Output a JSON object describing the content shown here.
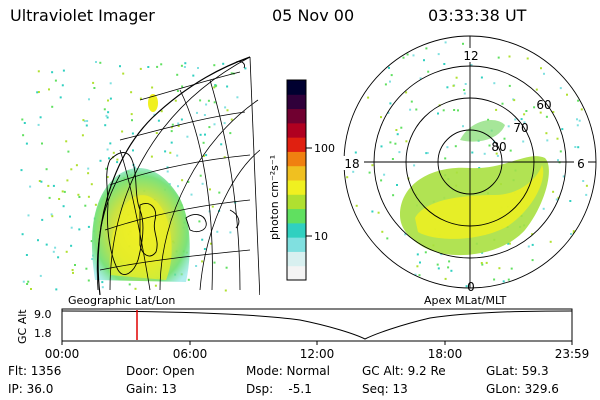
{
  "header": {
    "instrument": "Ultraviolet Imager",
    "date": "05 Nov 00",
    "time": "03:33:38 UT"
  },
  "panels": {
    "left_label": "Geographic Lat/Lon",
    "right_label": "Apex MLat/MLT"
  },
  "colorbar": {
    "unit": "photon cm⁻²s⁻¹",
    "tick_100": "100",
    "tick_10": "10",
    "colors": [
      "#f4f4f4",
      "#d8f0f0",
      "#80e0e0",
      "#30d0c0",
      "#60e060",
      "#b0e030",
      "#f0f020",
      "#f0c020",
      "#f08010",
      "#e02010",
      "#b00020",
      "#700030",
      "#30003a",
      "#000030"
    ]
  },
  "polar": {
    "mlt_labels": [
      "12",
      "18",
      "6",
      "0"
    ],
    "lat_labels": [
      "60",
      "70",
      "80"
    ]
  },
  "timeline": {
    "y_label": "GC Alt",
    "y_ticks": [
      "9.0",
      "1.8"
    ],
    "x_ticks": [
      "00:00",
      "06:00",
      "12:00",
      "18:00",
      "23:59"
    ],
    "marker_time": "03:33"
  },
  "status": {
    "row1": {
      "flt": "Flt: 1356",
      "door": "Door: Open",
      "mode": "Mode: Normal",
      "gcalt": "GC Alt: 9.2 Re",
      "glat": "GLat:  59.3"
    },
    "row2": {
      "ip": "IP: 36.0",
      "gain": "Gain: 13",
      "dsp": "Dsp:    -5.1",
      "seq": "Seq: 13",
      "glon": "GLon: 329.6"
    }
  }
}
